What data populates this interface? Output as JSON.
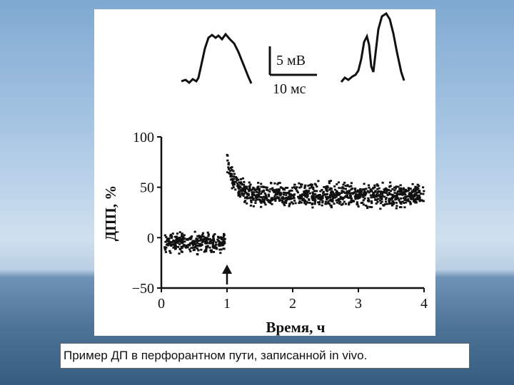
{
  "caption": "Пример ДП в перфорантном пути, записанной in vivo.",
  "chart_data": {
    "type": "scatter",
    "ylabel": "ДПП, %",
    "xlabel": "Время,  ч",
    "xlim": [
      0,
      4
    ],
    "ylim": [
      -50,
      100
    ],
    "x_ticks": [
      0,
      1,
      2,
      3,
      4
    ],
    "y_ticks": [
      100,
      50,
      0,
      -50
    ],
    "grid": false,
    "annotation": {
      "type": "arrow-up",
      "x": 1
    },
    "scale_bar": {
      "vertical_label": "5 мВ",
      "horizontal_label": "10 мс"
    },
    "series": [
      {
        "segment": "baseline",
        "x_range": [
          0.05,
          0.98
        ],
        "mean": -5,
        "spread": 9
      },
      {
        "segment": "potentiation",
        "x_range": [
          1.0,
          4.0
        ],
        "peak": 76,
        "peak_x": 1.0,
        "plateau": 42,
        "spread": 11
      }
    ],
    "traces": [
      {
        "name": "before",
        "shape": "single-peak"
      },
      {
        "name": "after",
        "shape": "double-peak"
      }
    ]
  }
}
